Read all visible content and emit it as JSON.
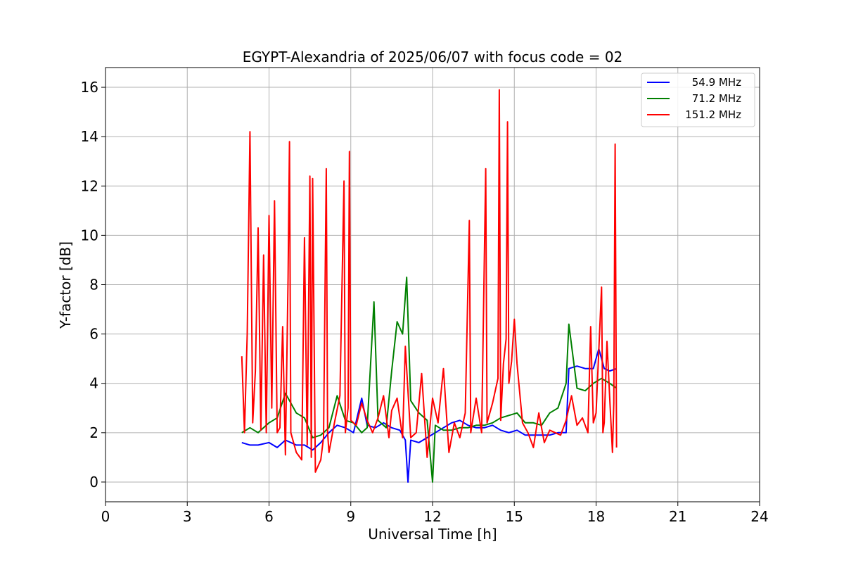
{
  "chart_data": {
    "type": "line",
    "title": "EGYPT-Alexandria of 2025/06/07 with focus code = 02",
    "xlabel": "Universal Time [h]",
    "ylabel": "Y-factor [dB]",
    "xlim": [
      0,
      24
    ],
    "ylim": [
      -0.8,
      16.8
    ],
    "xticks": [
      0,
      3,
      6,
      9,
      12,
      15,
      18,
      21,
      24
    ],
    "xtick_labels": [
      "0",
      "3",
      "6",
      "9",
      "12",
      "15",
      "18",
      "21",
      "24"
    ],
    "yticks": [
      0,
      2,
      4,
      6,
      8,
      10,
      12,
      14,
      16
    ],
    "ytick_labels": [
      "0",
      "2",
      "4",
      "6",
      "8",
      "10",
      "12",
      "14",
      "16"
    ],
    "grid": true,
    "legend_position": "top-right",
    "series": [
      {
        "name": "54.9 MHz",
        "color": "#0000ff",
        "x": [
          5.0,
          5.3,
          5.6,
          6.0,
          6.3,
          6.6,
          7.0,
          7.3,
          7.6,
          7.9,
          8.2,
          8.5,
          8.8,
          9.1,
          9.4,
          9.6,
          9.9,
          10.2,
          10.5,
          10.8,
          11.0,
          11.1,
          11.2,
          11.5,
          11.8,
          12.1,
          12.4,
          12.7,
          13.0,
          13.3,
          13.6,
          13.9,
          14.2,
          14.5,
          14.8,
          15.1,
          15.4,
          15.7,
          16.0,
          16.3,
          16.6,
          16.9,
          17.0,
          17.3,
          17.6,
          17.9,
          18.1,
          18.3,
          18.5,
          18.75
        ],
        "y": [
          1.6,
          1.5,
          1.5,
          1.6,
          1.4,
          1.7,
          1.5,
          1.5,
          1.3,
          1.6,
          2.0,
          2.3,
          2.2,
          2.0,
          3.4,
          2.3,
          2.2,
          2.4,
          2.2,
          2.1,
          1.7,
          0.0,
          1.7,
          1.6,
          1.8,
          2.0,
          2.2,
          2.4,
          2.5,
          2.3,
          2.2,
          2.2,
          2.3,
          2.1,
          2.0,
          2.1,
          1.9,
          1.9,
          1.9,
          1.9,
          2.0,
          2.0,
          4.6,
          4.7,
          4.6,
          4.6,
          5.4,
          4.6,
          4.5,
          4.6
        ]
      },
      {
        "name": "71.2 MHz",
        "color": "#008000",
        "x": [
          5.0,
          5.3,
          5.6,
          6.0,
          6.3,
          6.6,
          7.0,
          7.3,
          7.6,
          7.9,
          8.2,
          8.5,
          8.8,
          9.1,
          9.4,
          9.6,
          9.85,
          10.0,
          10.3,
          10.5,
          10.7,
          10.9,
          11.05,
          11.2,
          11.5,
          11.8,
          12.0,
          12.1,
          12.4,
          12.7,
          13.0,
          13.3,
          13.6,
          13.9,
          14.2,
          14.5,
          14.8,
          15.1,
          15.4,
          15.7,
          16.0,
          16.3,
          16.6,
          16.9,
          17.0,
          17.3,
          17.6,
          17.9,
          18.2,
          18.5,
          18.75
        ],
        "y": [
          2.0,
          2.2,
          2.0,
          2.4,
          2.6,
          3.6,
          2.8,
          2.6,
          1.8,
          1.9,
          2.2,
          3.5,
          2.5,
          2.4,
          2.0,
          2.2,
          7.3,
          2.5,
          2.2,
          4.5,
          6.5,
          6.0,
          8.3,
          3.3,
          2.8,
          2.5,
          0.0,
          2.3,
          2.1,
          2.1,
          2.2,
          2.2,
          2.3,
          2.3,
          2.4,
          2.6,
          2.7,
          2.8,
          2.4,
          2.4,
          2.3,
          2.8,
          3.0,
          4.0,
          6.4,
          3.8,
          3.7,
          4.0,
          4.2,
          4.0,
          3.8
        ]
      },
      {
        "name": "151.2 MHz",
        "color": "#ff0000",
        "x": [
          5.0,
          5.1,
          5.2,
          5.3,
          5.4,
          5.5,
          5.6,
          5.7,
          5.8,
          5.9,
          6.0,
          6.1,
          6.2,
          6.3,
          6.4,
          6.5,
          6.6,
          6.7,
          6.75,
          6.8,
          7.0,
          7.2,
          7.3,
          7.4,
          7.5,
          7.55,
          7.6,
          7.7,
          7.9,
          8.0,
          8.1,
          8.15,
          8.2,
          8.4,
          8.6,
          8.75,
          8.8,
          8.9,
          8.95,
          9.0,
          9.2,
          9.4,
          9.6,
          9.8,
          10.0,
          10.2,
          10.4,
          10.5,
          10.7,
          10.9,
          11.0,
          11.2,
          11.4,
          11.6,
          11.8,
          12.0,
          12.2,
          12.4,
          12.6,
          12.8,
          13.0,
          13.2,
          13.35,
          13.4,
          13.6,
          13.8,
          13.95,
          14.0,
          14.2,
          14.4,
          14.45,
          14.5,
          14.6,
          14.7,
          14.75,
          14.8,
          14.9,
          15.0,
          15.1,
          15.3,
          15.5,
          15.7,
          15.9,
          16.1,
          16.3,
          16.5,
          16.7,
          16.9,
          17.1,
          17.3,
          17.5,
          17.7,
          17.8,
          17.9,
          18.0,
          18.2,
          18.25,
          18.3,
          18.4,
          18.5,
          18.6,
          18.65,
          18.7,
          18.75
        ],
        "y": [
          5.1,
          2.0,
          6.0,
          14.2,
          2.4,
          4.5,
          10.3,
          2.1,
          9.2,
          2.0,
          10.8,
          3.0,
          11.4,
          2.0,
          2.2,
          6.3,
          1.1,
          8.3,
          13.8,
          2.0,
          1.2,
          0.9,
          9.9,
          1.5,
          12.4,
          1.0,
          12.3,
          0.4,
          0.9,
          1.8,
          12.7,
          2.0,
          1.2,
          2.4,
          3.5,
          12.2,
          2.0,
          3.0,
          13.4,
          2.5,
          2.3,
          3.2,
          2.5,
          2.0,
          2.6,
          3.5,
          1.8,
          2.9,
          3.4,
          1.8,
          5.5,
          1.8,
          2.0,
          4.4,
          1.0,
          3.4,
          2.4,
          4.6,
          1.2,
          2.4,
          1.8,
          2.8,
          10.6,
          2.0,
          3.4,
          2.0,
          12.7,
          2.4,
          3.2,
          4.2,
          15.9,
          2.5,
          4.8,
          5.8,
          14.6,
          4.0,
          4.9,
          6.6,
          4.8,
          2.4,
          2.0,
          1.4,
          2.8,
          1.6,
          2.1,
          2.0,
          1.9,
          2.5,
          3.5,
          2.3,
          2.6,
          2.0,
          6.3,
          2.4,
          2.8,
          7.9,
          2.0,
          2.4,
          5.7,
          3.4,
          1.2,
          3.2,
          13.7,
          1.4
        ]
      }
    ]
  }
}
